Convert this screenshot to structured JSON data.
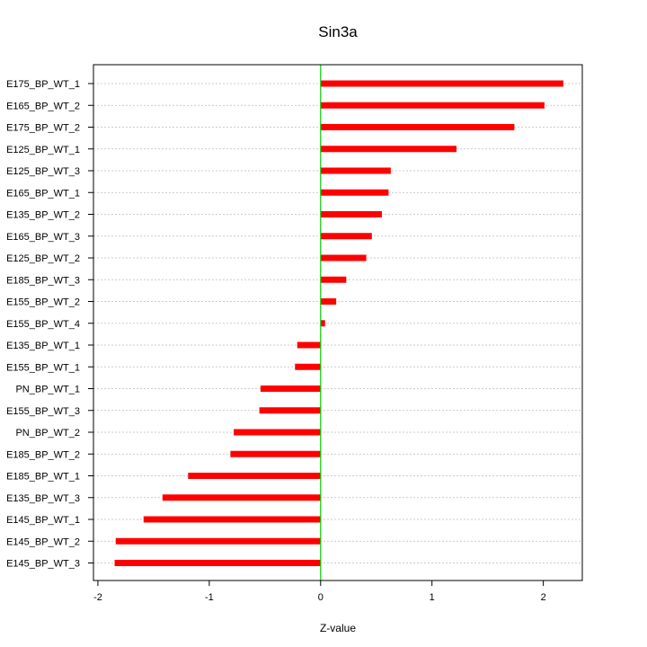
{
  "chart_data": {
    "type": "bar",
    "orientation": "horizontal",
    "title": "Sin3a",
    "xlabel": "Z-value",
    "ylabel": "",
    "xlim": [
      -2.04,
      2.35
    ],
    "xticks": [
      -2,
      -1,
      0,
      1,
      2
    ],
    "grid": "horizontal dotted",
    "reference_line": {
      "x": 0,
      "color": "#00cc00"
    },
    "bar_color": "#ff0000",
    "categories": [
      "E175_BP_WT_1",
      "E165_BP_WT_2",
      "E175_BP_WT_2",
      "E125_BP_WT_1",
      "E125_BP_WT_3",
      "E165_BP_WT_1",
      "E135_BP_WT_2",
      "E165_BP_WT_3",
      "E125_BP_WT_2",
      "E185_BP_WT_3",
      "E155_BP_WT_2",
      "E155_BP_WT_4",
      "E135_BP_WT_1",
      "E155_BP_WT_1",
      "PN_BP_WT_1",
      "E155_BP_WT_3",
      "PN_BP_WT_2",
      "E185_BP_WT_2",
      "E185_BP_WT_1",
      "E135_BP_WT_3",
      "E145_BP_WT_1",
      "E145_BP_WT_2",
      "E145_BP_WT_3"
    ],
    "values": [
      2.18,
      2.01,
      1.74,
      1.22,
      0.63,
      0.61,
      0.55,
      0.46,
      0.41,
      0.23,
      0.14,
      0.04,
      -0.21,
      -0.23,
      -0.54,
      -0.55,
      -0.78,
      -0.81,
      -1.19,
      -1.42,
      -1.59,
      -1.84,
      -1.85
    ]
  }
}
